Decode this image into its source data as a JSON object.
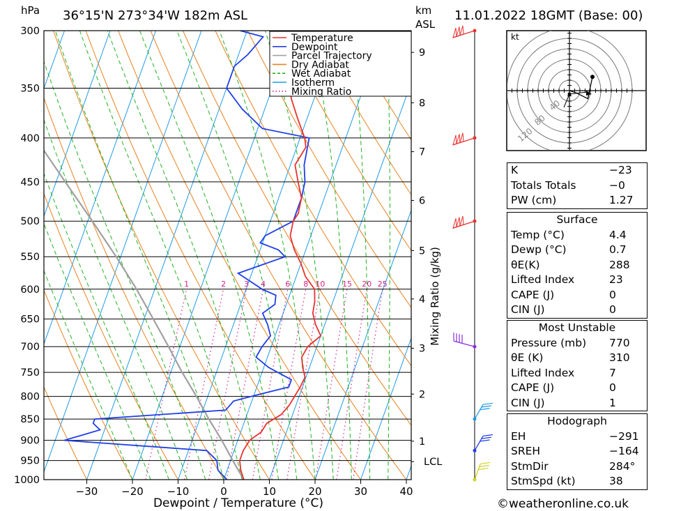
{
  "header": {
    "pressure_unit": "hPa",
    "location": "36°15'N 273°34'W 182m ASL",
    "height_unit_km": "km",
    "height_unit_asl": "ASL",
    "datetime": "11.01.2022 18GMT (Base: 00)"
  },
  "chart_data": {
    "type": "line",
    "subtype": "skew-T log-P",
    "xlabel": "Dewpoint / Temperature (°C)",
    "ylabel": "hPa",
    "secondary_ylabel": "Mixing Ratio (g/kg)",
    "xlim": [
      -40,
      40
    ],
    "ylim": [
      1000,
      300
    ],
    "x_ticks": [
      -30,
      -20,
      -10,
      0,
      10,
      20,
      30,
      40
    ],
    "pressure_levels": [
      300,
      350,
      400,
      450,
      500,
      550,
      600,
      650,
      700,
      750,
      800,
      850,
      900,
      950,
      1000
    ],
    "height_ticks_km": [
      {
        "label": "9",
        "p": 318
      },
      {
        "label": "8",
        "p": 364
      },
      {
        "label": "7",
        "p": 415
      },
      {
        "label": "6",
        "p": 473
      },
      {
        "label": "5",
        "p": 541
      },
      {
        "label": "4",
        "p": 616
      },
      {
        "label": "3",
        "p": 703
      },
      {
        "label": "2",
        "p": 795
      },
      {
        "label": "1",
        "p": 902
      },
      {
        "label": "LCL",
        "p": 953
      }
    ],
    "mixing_ratio_labels": [
      "1",
      "2",
      "3",
      "4",
      "6",
      "8",
      "10",
      "15",
      "20",
      "25"
    ],
    "mixing_ratio_values": [
      1,
      2,
      3,
      4,
      6,
      8,
      10,
      15,
      20,
      25
    ],
    "legend": [
      {
        "name": "Temperature",
        "color": "#e8322f",
        "style": "solid"
      },
      {
        "name": "Dewpoint",
        "color": "#1f3ee8",
        "style": "solid"
      },
      {
        "name": "Parcel Trajectory",
        "color": "#a0a0a0",
        "style": "solid"
      },
      {
        "name": "Dry Adiabat",
        "color": "#e8821e",
        "style": "solid"
      },
      {
        "name": "Wet Adiabat",
        "color": "#1eb41e",
        "style": "dashed"
      },
      {
        "name": "Isotherm",
        "color": "#1e9be8",
        "style": "solid"
      },
      {
        "name": "Mixing Ratio",
        "color": "#d21e8c",
        "style": "dotted"
      }
    ],
    "series": [
      {
        "name": "Temperature",
        "color": "#e8322f",
        "points": [
          [
            1000,
            4.4
          ],
          [
            975,
            3
          ],
          [
            950,
            2
          ],
          [
            925,
            2
          ],
          [
            900,
            2.6
          ],
          [
            880,
            4.5
          ],
          [
            860,
            5
          ],
          [
            840,
            7.5
          ],
          [
            820,
            8.5
          ],
          [
            800,
            9
          ],
          [
            780,
            9.5
          ],
          [
            760,
            9.8
          ],
          [
            740,
            8.5
          ],
          [
            720,
            7.5
          ],
          [
            700,
            8
          ],
          [
            690,
            9
          ],
          [
            680,
            10
          ],
          [
            660,
            8
          ],
          [
            640,
            6.5
          ],
          [
            620,
            6
          ],
          [
            600,
            5
          ],
          [
            580,
            2
          ],
          [
            560,
            0
          ],
          [
            540,
            -2.5
          ],
          [
            520,
            -4.5
          ],
          [
            500,
            -5
          ],
          [
            490,
            -4.5
          ],
          [
            470,
            -5
          ],
          [
            450,
            -7
          ],
          [
            430,
            -9
          ],
          [
            410,
            -8
          ],
          [
            400,
            -9
          ],
          [
            380,
            -12
          ],
          [
            360,
            -15
          ],
          [
            340,
            -17
          ],
          [
            320,
            -20.5
          ],
          [
            300,
            -23.5
          ]
        ]
      },
      {
        "name": "Dewpoint",
        "color": "#1f3ee8",
        "points": [
          [
            1000,
            0.7
          ],
          [
            975,
            -2
          ],
          [
            950,
            -3
          ],
          [
            925,
            -6
          ],
          [
            900,
            -38
          ],
          [
            875,
            -31
          ],
          [
            860,
            -33
          ],
          [
            850,
            -33
          ],
          [
            830,
            -5
          ],
          [
            810,
            -4
          ],
          [
            800,
            -0.5
          ],
          [
            780,
            7
          ],
          [
            765,
            7
          ],
          [
            740,
            1
          ],
          [
            720,
            -2.5
          ],
          [
            700,
            -2
          ],
          [
            680,
            -1
          ],
          [
            660,
            -2.5
          ],
          [
            640,
            -4.5
          ],
          [
            625,
            -2.5
          ],
          [
            610,
            -3
          ],
          [
            600,
            -6.5
          ],
          [
            575,
            -13
          ],
          [
            550,
            -4
          ],
          [
            540,
            -6
          ],
          [
            530,
            -10.5
          ],
          [
            520,
            -10
          ],
          [
            500,
            -5
          ],
          [
            470,
            -5
          ],
          [
            450,
            -5.5
          ],
          [
            430,
            -7
          ],
          [
            400,
            -8
          ],
          [
            390,
            -19
          ],
          [
            370,
            -25
          ],
          [
            350,
            -30
          ],
          [
            330,
            -30
          ],
          [
            320,
            -28
          ],
          [
            305,
            -26
          ],
          [
            300,
            -31.5
          ]
        ]
      },
      {
        "name": "Parcel Trajectory",
        "color": "#a0a0a0",
        "points": [
          [
            1000,
            4.4
          ],
          [
            953,
            0.7
          ],
          [
            900,
            -3.5
          ],
          [
            850,
            -8
          ],
          [
            800,
            -12.5
          ],
          [
            750,
            -17.5
          ],
          [
            700,
            -22.5
          ],
          [
            650,
            -28
          ],
          [
            600,
            -34
          ],
          [
            550,
            -41
          ],
          [
            500,
            -49
          ],
          [
            450,
            -58
          ],
          [
            400,
            -68
          ],
          [
            350,
            -79
          ],
          [
            300,
            -92
          ]
        ]
      }
    ]
  },
  "wind_profile": {
    "barbs": [
      {
        "p": 300,
        "color": "#e8322f"
      },
      {
        "p": 400,
        "color": "#e8322f"
      },
      {
        "p": 500,
        "color": "#e8322f"
      },
      {
        "p": 700,
        "color": "#8a2be2"
      },
      {
        "p": 850,
        "color": "#1e9be8"
      },
      {
        "p": 925,
        "color": "#1f3ee8"
      },
      {
        "p": 1000,
        "color": "#d2d21e"
      }
    ]
  },
  "hodograph": {
    "unit": "kt",
    "ring_labels": [
      "40",
      "80",
      "120"
    ],
    "path_points_kt": [
      [
        0,
        0
      ],
      [
        12,
        -4
      ],
      [
        32,
        -14
      ],
      [
        40,
        24
      ]
    ]
  },
  "indices": {
    "rows": [
      {
        "label": "K",
        "value": "−23"
      },
      {
        "label": "Totals Totals",
        "value": "−0"
      },
      {
        "label": "PW (cm)",
        "value": "1.27"
      }
    ]
  },
  "surface": {
    "title": "Surface",
    "rows": [
      {
        "label": "Temp (°C)",
        "value": "4.4"
      },
      {
        "label": "Dewp (°C)",
        "value": "0.7"
      },
      {
        "label": "θE(K)",
        "value": "288"
      },
      {
        "label": "Lifted Index",
        "value": "23"
      },
      {
        "label": "CAPE (J)",
        "value": "0"
      },
      {
        "label": "CIN (J)",
        "value": "0"
      }
    ]
  },
  "most_unstable": {
    "title": "Most Unstable",
    "rows": [
      {
        "label": "Pressure (mb)",
        "value": "770"
      },
      {
        "label": "θE (K)",
        "value": "310"
      },
      {
        "label": "Lifted Index",
        "value": "7"
      },
      {
        "label": "CAPE (J)",
        "value": "0"
      },
      {
        "label": "CIN (J)",
        "value": "1"
      }
    ]
  },
  "hodograph_table": {
    "title": "Hodograph",
    "rows": [
      {
        "label": "EH",
        "value": "−291"
      },
      {
        "label": "SREH",
        "value": "−164"
      },
      {
        "label": "StmDir",
        "value": "284°"
      },
      {
        "label": "StmSpd (kt)",
        "value": "38"
      }
    ]
  },
  "footer": {
    "copyright": "©weatheronline.co.uk"
  }
}
